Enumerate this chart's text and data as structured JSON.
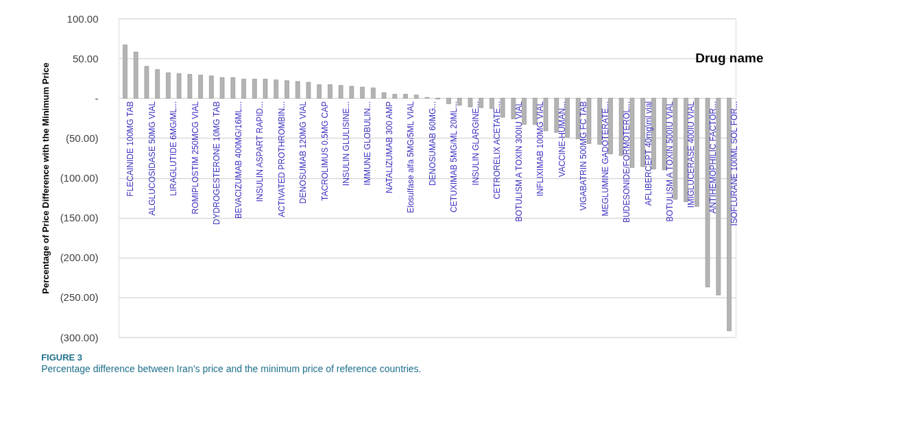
{
  "chart_data": {
    "type": "bar",
    "ylabel": "Percentage of Price Difference with the Minimum Price",
    "xlabel": "Drug name",
    "categories": [
      "FLECAINIDE 100MG TAB",
      null,
      "ALGLUCOSIDASE 50MG VIAL",
      null,
      "LIRAGLUTIDE 6MG/ML...",
      null,
      "ROMIPLOSTIM 250MCG VIAL",
      null,
      "DYDROGESTERONE 10MG TAB",
      null,
      "BEVACIZUMAB 400MG/16ML...",
      null,
      "INSULIN ASPART RAPID...",
      null,
      "ACTIVATED PROTHROMBIN...",
      null,
      "DENOSUMAB 120MG VIAL",
      null,
      "TACROLIMUS 0.5MG CAP",
      null,
      "INSULIN GLULISINE...",
      null,
      "IMMUNE GLOBULIN...",
      null,
      "NATALIZUMAB 300 AMP",
      null,
      "Elosulfase alfa 5MG/5ML VIAL",
      null,
      "DENOSUMAB 60MG...",
      null,
      "CETUXIMAB 5MG/ML 20ML...",
      null,
      "INSULIN GLARGINE...",
      null,
      "CETRORELIX ACETATE...",
      null,
      "BOTULISM A TOXIN 300IU VIAL",
      null,
      "INFLIXIMAB 100MG VIAL",
      null,
      "VACCINE-HUMAN...",
      null,
      "VIGABATRIN 500MG FC TAB",
      null,
      "MEGLUMINE GADOTERATE...",
      null,
      "BUDESONIDE/FORMOTEROL...",
      null,
      "AFLIBERCEPT 40mg\\ml vial",
      null,
      "BOTULISM A TOXIN 500IU VIAL",
      null,
      "IMIGLUCERASE 400IU VIAL",
      null,
      "ANTIHEMOPHILIC FACTOR...",
      null,
      "ISOFLURANE 100ML SOL FOR..."
    ],
    "values": [
      67,
      58,
      40,
      36,
      32,
      31,
      30,
      29,
      28,
      26,
      26,
      24,
      24,
      24,
      23,
      22,
      21,
      20,
      17,
      17,
      16,
      15,
      14,
      13,
      7,
      5,
      5,
      4,
      1,
      -1,
      -7,
      -9,
      -11,
      -12,
      -13,
      -24,
      -26,
      -33,
      -33,
      -41,
      -43,
      -49,
      -51,
      -57,
      -58,
      -70,
      -72,
      -87,
      -86,
      -89,
      -90,
      -127,
      -130,
      -136,
      -237,
      -247,
      -292
    ],
    "color": "#b4b4b4",
    "ylim": [
      -300,
      100
    ],
    "yticks": [
      {
        "value": 100,
        "label": "100.00"
      },
      {
        "value": 50,
        "label": "50.00"
      },
      {
        "value": 0,
        "label": "-"
      },
      {
        "value": -50,
        "label": "(50.00)"
      },
      {
        "value": -100,
        "label": "(100.00)"
      },
      {
        "value": -150,
        "label": "(150.00)"
      },
      {
        "value": -200,
        "label": "(200.00)"
      },
      {
        "value": -250,
        "label": "(250.00)"
      },
      {
        "value": -300,
        "label": "(300.00)"
      }
    ],
    "grid": "y",
    "annotations": [
      "FIGURE 3",
      "Percentage difference between Iran’s price and the minimum price of reference countries."
    ]
  }
}
